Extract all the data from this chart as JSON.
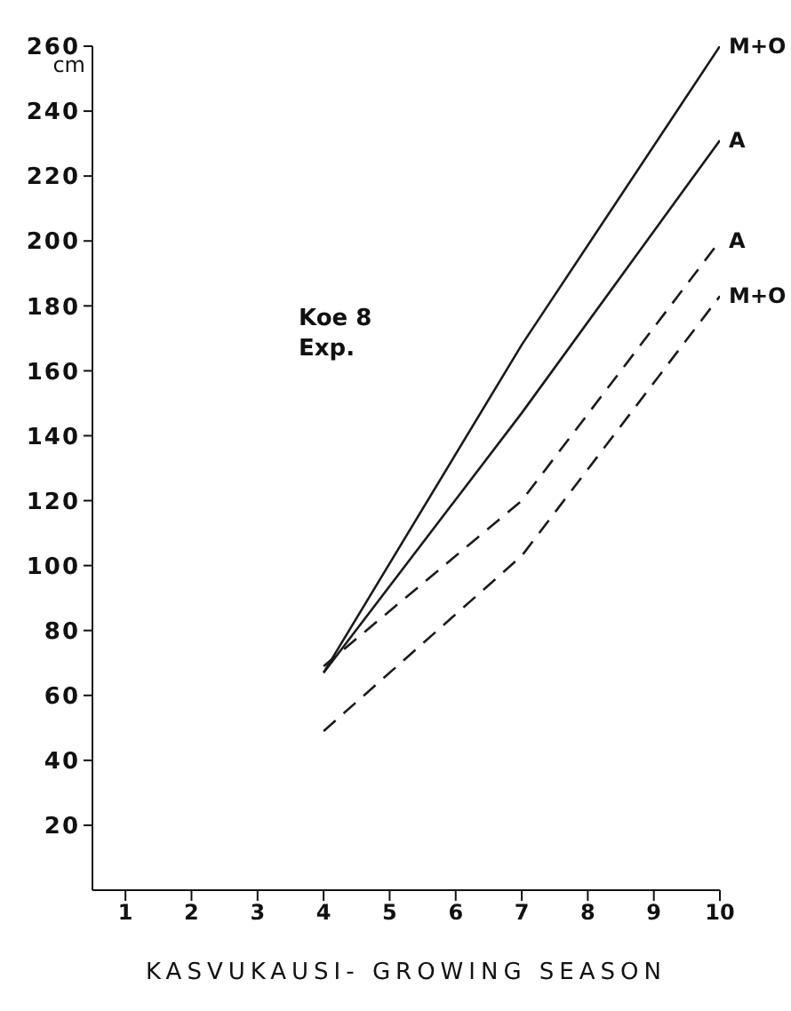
{
  "chart_data": {
    "type": "line",
    "xlabel": "KASVUKAUSI- GROWING SEASON",
    "ylabel": "cm",
    "annotations": [
      "Koe 8\nExp."
    ],
    "xlim": [
      0.5,
      10
    ],
    "xticks": [
      1,
      2,
      3,
      4,
      5,
      6,
      7,
      8,
      9,
      10
    ],
    "ylim": [
      0,
      260
    ],
    "yticks": [
      20,
      40,
      60,
      80,
      100,
      120,
      140,
      160,
      180,
      200,
      220,
      240,
      260
    ],
    "grid": false,
    "legend": false,
    "marker": "none",
    "series": [
      {
        "name": "M+O",
        "color": "#1a1a1a",
        "line_style": "solid",
        "x": [
          4,
          7,
          10
        ],
        "values": [
          67,
          168,
          260
        ]
      },
      {
        "name": "A",
        "color": "#1a1a1a",
        "line_style": "solid",
        "x": [
          4,
          7,
          10
        ],
        "values": [
          67,
          147,
          231
        ]
      },
      {
        "name": "A",
        "color": "#1a1a1a",
        "line_style": "dashed",
        "x": [
          4,
          7,
          10
        ],
        "values": [
          69,
          120,
          200
        ]
      },
      {
        "name": "M+O",
        "color": "#1a1a1a",
        "line_style": "dashed",
        "x": [
          4,
          7,
          10
        ],
        "values": [
          49,
          103,
          183
        ]
      }
    ]
  }
}
